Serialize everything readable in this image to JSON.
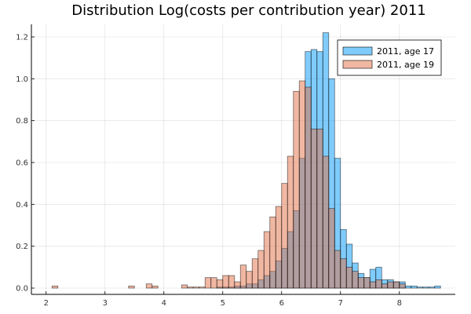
{
  "chart_data": {
    "type": "bar",
    "title": "Distribution Log(costs per contribution year)  2011",
    "xlabel": "",
    "ylabel": "",
    "xlim": [
      1.75,
      8.95
    ],
    "ylim": [
      -0.03,
      1.26
    ],
    "xticks": [
      2,
      3,
      4,
      5,
      6,
      7,
      8
    ],
    "yticks": [
      0.0,
      0.2,
      0.4,
      0.6,
      0.8,
      1.0,
      1.2
    ],
    "ytick_labels": [
      "0.0",
      "0.2",
      "0.4",
      "0.6",
      "0.8",
      "1.0",
      "1.2"
    ],
    "grid": true,
    "legend_position": "top-right",
    "bin_width": 0.1,
    "series": [
      {
        "name": "2011, age 17",
        "color": "#009AFA",
        "bars": [
          [
            4.9,
            0.005
          ],
          [
            5.0,
            0.005
          ],
          [
            5.1,
            0.005
          ],
          [
            5.2,
            0.01
          ],
          [
            5.3,
            0.01
          ],
          [
            5.4,
            0.02
          ],
          [
            5.5,
            0.02
          ],
          [
            5.6,
            0.04
          ],
          [
            5.7,
            0.06
          ],
          [
            5.8,
            0.08
          ],
          [
            5.9,
            0.13
          ],
          [
            6.0,
            0.19
          ],
          [
            6.1,
            0.27
          ],
          [
            6.2,
            0.37
          ],
          [
            6.3,
            0.62
          ],
          [
            6.4,
            1.13
          ],
          [
            6.5,
            1.14
          ],
          [
            6.6,
            1.13
          ],
          [
            6.7,
            1.22
          ],
          [
            6.8,
            1.0
          ],
          [
            6.9,
            0.62
          ],
          [
            7.0,
            0.28
          ],
          [
            7.1,
            0.21
          ],
          [
            7.2,
            0.12
          ],
          [
            7.3,
            0.07
          ],
          [
            7.4,
            0.05
          ],
          [
            7.5,
            0.09
          ],
          [
            7.6,
            0.1
          ],
          [
            7.7,
            0.04
          ],
          [
            7.8,
            0.04
          ],
          [
            7.9,
            0.03
          ],
          [
            8.0,
            0.03
          ],
          [
            8.1,
            0.01
          ],
          [
            8.2,
            0.01
          ],
          [
            8.3,
            0.005
          ],
          [
            8.4,
            0.005
          ],
          [
            8.5,
            0.005
          ],
          [
            8.6,
            0.01
          ]
        ]
      },
      {
        "name": "2011, age 19",
        "color": "#E26F46",
        "bars": [
          [
            2.1,
            0.01
          ],
          [
            3.4,
            0.01
          ],
          [
            3.7,
            0.02
          ],
          [
            3.8,
            0.01
          ],
          [
            4.3,
            0.015
          ],
          [
            4.4,
            0.005
          ],
          [
            4.5,
            0.005
          ],
          [
            4.6,
            0.005
          ],
          [
            4.7,
            0.05
          ],
          [
            4.8,
            0.05
          ],
          [
            4.9,
            0.04
          ],
          [
            5.0,
            0.06
          ],
          [
            5.1,
            0.06
          ],
          [
            5.2,
            0.03
          ],
          [
            5.3,
            0.11
          ],
          [
            5.4,
            0.08
          ],
          [
            5.5,
            0.14
          ],
          [
            5.6,
            0.18
          ],
          [
            5.7,
            0.27
          ],
          [
            5.8,
            0.34
          ],
          [
            5.9,
            0.39
          ],
          [
            6.0,
            0.5
          ],
          [
            6.1,
            0.63
          ],
          [
            6.2,
            0.94
          ],
          [
            6.3,
            0.99
          ],
          [
            6.4,
            0.96
          ],
          [
            6.5,
            0.76
          ],
          [
            6.6,
            0.76
          ],
          [
            6.7,
            0.63
          ],
          [
            6.8,
            0.38
          ],
          [
            6.9,
            0.18
          ],
          [
            7.0,
            0.14
          ],
          [
            7.1,
            0.1
          ],
          [
            7.2,
            0.08
          ],
          [
            7.3,
            0.05
          ],
          [
            7.4,
            0.05
          ],
          [
            7.5,
            0.03
          ],
          [
            7.6,
            0.04
          ],
          [
            7.7,
            0.02
          ],
          [
            7.8,
            0.03
          ],
          [
            7.9,
            0.03
          ],
          [
            8.0,
            0.02
          ]
        ]
      }
    ]
  }
}
